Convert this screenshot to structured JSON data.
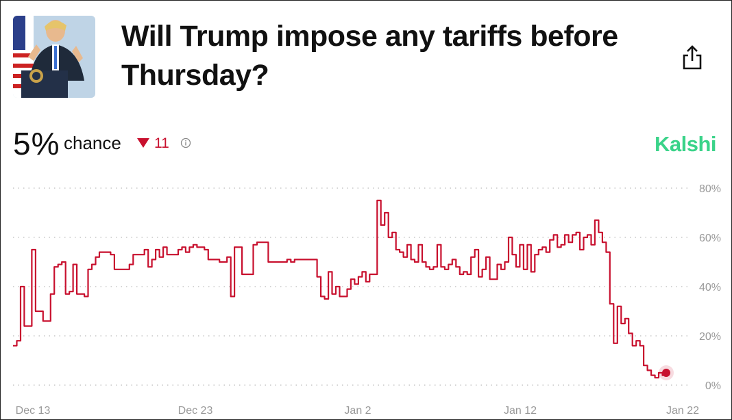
{
  "header": {
    "title": "Will Trump impose any tariffs before Thursday?",
    "share_icon": "share-icon"
  },
  "summary": {
    "chance_value": "5%",
    "chance_label": "chance",
    "delta_direction": "down",
    "delta_value": "11",
    "info_icon": "info-icon",
    "source": "Kalshi",
    "source_color": "#3ad389",
    "line_color": "#c8102e"
  },
  "chart_data": {
    "type": "line",
    "title": "",
    "xlabel": "",
    "ylabel": "",
    "x_tick_labels": [
      "Dec 13",
      "Dec 23",
      "Jan 2",
      "Jan 12",
      "Jan 22"
    ],
    "y_tick_labels": [
      "0%",
      "20%",
      "40%",
      "60%",
      "80%"
    ],
    "ylim": [
      0,
      80
    ],
    "grid": "horizontal dotted",
    "series": [
      {
        "values_percent": [
          16,
          18,
          40,
          24,
          24,
          55,
          30,
          30,
          26,
          26,
          37,
          48,
          49,
          50,
          37,
          38,
          49,
          37,
          37,
          36,
          47,
          49,
          52,
          54,
          54,
          54,
          53,
          47,
          47,
          47,
          47,
          49,
          53,
          53,
          53,
          55,
          48,
          51,
          55,
          52,
          56,
          53,
          53,
          53,
          55,
          56,
          54,
          56,
          57,
          56,
          56,
          55,
          51,
          51,
          51,
          50,
          50,
          52,
          36,
          56,
          56,
          45,
          45,
          45,
          57,
          58,
          58,
          58,
          50,
          50,
          50,
          50,
          50,
          51,
          50,
          51,
          51,
          51,
          51,
          51,
          51,
          44,
          36,
          35,
          46,
          37,
          40,
          36,
          36,
          39,
          43,
          41,
          44,
          46,
          42,
          45,
          45,
          75,
          65,
          70,
          60,
          62,
          55,
          54,
          52,
          57,
          51,
          50,
          57,
          50,
          48,
          47,
          48,
          57,
          48,
          47,
          49,
          51,
          48,
          45,
          46,
          45,
          52,
          55,
          44,
          47,
          52,
          43,
          43,
          49,
          47,
          50,
          60,
          53,
          48,
          57,
          47,
          57,
          46,
          53,
          55,
          56,
          54,
          59,
          61,
          56,
          57,
          61,
          58,
          61,
          62,
          55,
          60,
          61,
          57,
          67,
          62,
          58,
          54,
          33,
          17,
          32,
          25,
          27,
          21,
          16,
          18,
          16,
          8,
          6,
          4,
          3,
          5,
          4,
          5
        ]
      }
    ],
    "current_point": {
      "x": "Jan 22",
      "y": 5
    }
  }
}
